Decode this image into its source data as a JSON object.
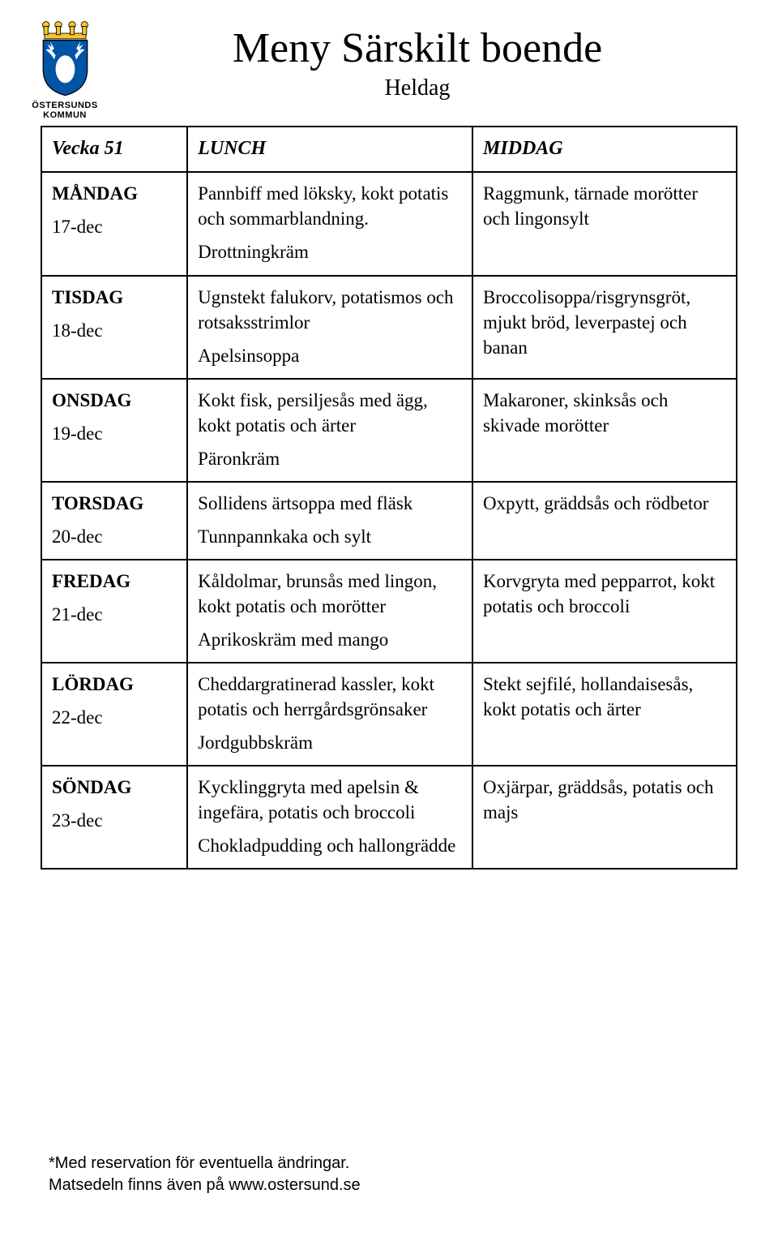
{
  "logo": {
    "org_line1": "ÖSTERSUNDS",
    "org_line2": "KOMMUN",
    "crown_color": "#f5c430",
    "shield_top": "#0055a5",
    "shield_bottom": "#ffffff",
    "moose_color": "#ffffff"
  },
  "header": {
    "title": "Meny Särskilt boende",
    "subtitle": "Heldag"
  },
  "table": {
    "week_label": "Vecka 51",
    "col_lunch": "LUNCH",
    "col_dinner": "MIDDAG",
    "border_color": "#000000",
    "font_family": "Palatino",
    "rows": [
      {
        "day": "MÅNDAG",
        "date": "17-dec",
        "lunch": [
          "Pannbiff med löksky, kokt potatis och sommarblandning.",
          "Drottningkräm"
        ],
        "dinner": [
          "Raggmunk, tärnade morötter och lingonsylt"
        ]
      },
      {
        "day": "TISDAG",
        "date": "18-dec",
        "lunch": [
          "Ugnstekt falukorv, potatismos och rotsaksstrimlor",
          "Apelsinsoppa"
        ],
        "dinner": [
          "Broccolisoppa/risgrynsgröt, mjukt bröd, leverpastej och banan"
        ]
      },
      {
        "day": "ONSDAG",
        "date": "19-dec",
        "lunch": [
          "Kokt fisk, persiljesås med ägg, kokt potatis och ärter",
          "Päronkräm"
        ],
        "dinner": [
          "Makaroner, skinksås och skivade morötter"
        ]
      },
      {
        "day": "TORSDAG",
        "date": "20-dec",
        "lunch": [
          "Sollidens ärtsoppa med fläsk",
          "Tunnpannkaka och sylt"
        ],
        "dinner": [
          "Oxpytt, gräddsås och rödbetor"
        ]
      },
      {
        "day": "FREDAG",
        "date": "21-dec",
        "lunch": [
          "Kåldolmar, brunsås med lingon, kokt potatis och morötter",
          "Aprikoskräm med mango"
        ],
        "dinner": [
          "Korvgryta med pepparrot, kokt potatis och broccoli"
        ]
      },
      {
        "day": "LÖRDAG",
        "date": "22-dec",
        "lunch": [
          "Cheddargratinerad kassler, kokt potatis och herrgårdsgrönsaker",
          "Jordgubbskräm"
        ],
        "dinner": [
          "Stekt sejfilé, hollandaisesås, kokt potatis och ärter"
        ]
      },
      {
        "day": "SÖNDAG",
        "date": "23-dec",
        "lunch": [
          "Kycklinggryta med apelsin & ingefära, potatis och broccoli",
          "Chokladpudding och hallongrädde"
        ],
        "dinner": [
          "Oxjärpar, gräddsås, potatis och majs"
        ]
      }
    ]
  },
  "footer": {
    "line1": "*Med reservation för eventuella ändringar.",
    "line2": "Matsedeln finns även på www.ostersund.se"
  }
}
